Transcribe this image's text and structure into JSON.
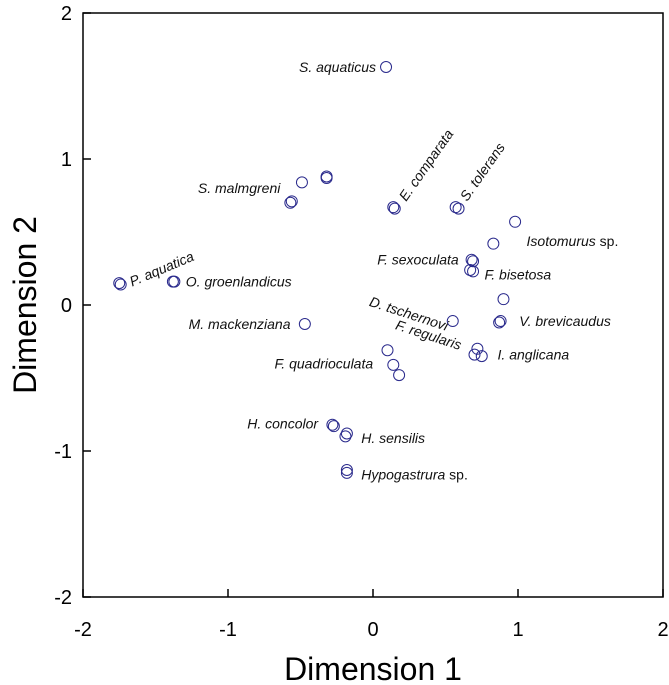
{
  "chart_data": {
    "type": "scatter",
    "xlabel": "Dimension 1",
    "ylabel": "Dimension 2",
    "xlim": [
      -2,
      2
    ],
    "ylim": [
      -2,
      2
    ],
    "x_ticks": [
      "-2",
      "-1",
      "0",
      "1",
      "2"
    ],
    "y_ticks": [
      "-2",
      "-1",
      "0",
      "1",
      "2"
    ],
    "grid": false,
    "marker_color": "#2a2a8c",
    "points": [
      {
        "x": 0.09,
        "y": 1.63
      },
      {
        "x": -0.49,
        "y": 0.84
      },
      {
        "x": -0.32,
        "y": 0.87
      },
      {
        "x": -0.32,
        "y": 0.88
      },
      {
        "x": -0.57,
        "y": 0.7
      },
      {
        "x": -0.56,
        "y": 0.71
      },
      {
        "x": 0.15,
        "y": 0.66
      },
      {
        "x": 0.14,
        "y": 0.67
      },
      {
        "x": 0.57,
        "y": 0.67
      },
      {
        "x": 0.59,
        "y": 0.66
      },
      {
        "x": 0.98,
        "y": 0.57
      },
      {
        "x": 0.83,
        "y": 0.42
      },
      {
        "x": 0.69,
        "y": 0.3
      },
      {
        "x": 0.68,
        "y": 0.31
      },
      {
        "x": 0.67,
        "y": 0.24
      },
      {
        "x": 0.69,
        "y": 0.23
      },
      {
        "x": -1.75,
        "y": 0.15
      },
      {
        "x": -1.74,
        "y": 0.14
      },
      {
        "x": -1.37,
        "y": 0.16
      },
      {
        "x": -1.38,
        "y": 0.16
      },
      {
        "x": 0.9,
        "y": 0.04
      },
      {
        "x": 0.88,
        "y": -0.11
      },
      {
        "x": 0.87,
        "y": -0.12
      },
      {
        "x": -0.47,
        "y": -0.13
      },
      {
        "x": 0.55,
        "y": -0.11
      },
      {
        "x": 0.72,
        "y": -0.3
      },
      {
        "x": 0.7,
        "y": -0.34
      },
      {
        "x": 0.75,
        "y": -0.35
      },
      {
        "x": 0.1,
        "y": -0.31
      },
      {
        "x": 0.14,
        "y": -0.41
      },
      {
        "x": 0.18,
        "y": -0.48
      },
      {
        "x": -0.28,
        "y": -0.82
      },
      {
        "x": -0.27,
        "y": -0.83
      },
      {
        "x": -0.18,
        "y": -0.88
      },
      {
        "x": -0.19,
        "y": -0.9
      },
      {
        "x": -0.18,
        "y": -1.13
      },
      {
        "x": -0.18,
        "y": -1.15
      }
    ],
    "annotations": [
      {
        "text": "S. aquaticus",
        "x": 0.09,
        "y": 1.63,
        "pos": "left",
        "rotate": 0
      },
      {
        "text": "S. malmgreni",
        "x": -0.57,
        "y": 0.8,
        "pos": "left",
        "rotate": 0
      },
      {
        "text": "E. comparata",
        "x": 0.16,
        "y": 0.74,
        "pos": "right",
        "rotate": -55
      },
      {
        "text": "S. tolerans",
        "x": 0.58,
        "y": 0.74,
        "pos": "right",
        "rotate": -55
      },
      {
        "text": "Isotomurus",
        "suffix": " sp.",
        "x": 0.99,
        "y": 0.44,
        "pos": "right",
        "rotate": 0
      },
      {
        "text": "F. sexoculata",
        "x": 0.66,
        "y": 0.31,
        "pos": "left",
        "rotate": 0
      },
      {
        "text": "F. bisetosa",
        "x": 0.7,
        "y": 0.21,
        "pos": "right",
        "rotate": 0
      },
      {
        "text": "P. aquatica",
        "x": -1.73,
        "y": 0.16,
        "pos": "right",
        "rotate": -23
      },
      {
        "text": "O. groenlandicus",
        "x": -1.36,
        "y": 0.16,
        "pos": "right",
        "rotate": 0
      },
      {
        "text": "D. tschernovi",
        "x": -0.1,
        "y": 0.03,
        "pos": "right",
        "rotate": 18
      },
      {
        "text": "V. brevicaudus",
        "x": 0.94,
        "y": -0.11,
        "pos": "right",
        "rotate": 0
      },
      {
        "text": "M. mackenziana",
        "x": -0.5,
        "y": -0.13,
        "pos": "left",
        "rotate": 0
      },
      {
        "text": "F. regularis",
        "x": 0.08,
        "y": -0.13,
        "pos": "right",
        "rotate": 18
      },
      {
        "text": "I. anglicana",
        "x": 0.79,
        "y": -0.34,
        "pos": "right",
        "rotate": 0
      },
      {
        "text": "F. quadrioculata",
        "x": 0.07,
        "y": -0.4,
        "pos": "left",
        "rotate": 0
      },
      {
        "text": "H. concolor",
        "x": -0.31,
        "y": -0.81,
        "pos": "left",
        "rotate": 0
      },
      {
        "text": "H. sensilis",
        "x": -0.15,
        "y": -0.91,
        "pos": "right",
        "rotate": 0
      },
      {
        "text": "Hypogastrura",
        "suffix": " sp.",
        "x": -0.15,
        "y": -1.16,
        "pos": "right",
        "rotate": 0
      }
    ]
  }
}
